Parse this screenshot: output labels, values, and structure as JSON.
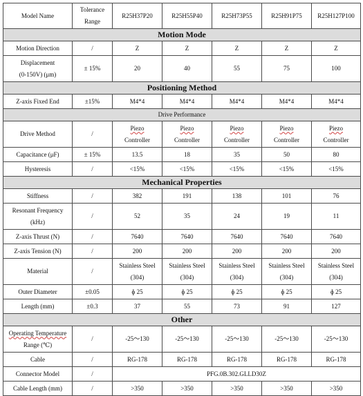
{
  "header": {
    "label_col": "Model Name",
    "tolerance": "Tolerance Range",
    "models": [
      "R25H37P20",
      "R25H55P40",
      "R25H73P55",
      "R25H91P75",
      "R25H127P100"
    ]
  },
  "sections": {
    "motion": "Motion Mode",
    "positioning": "Positioning Method",
    "drive": "Drive Performance",
    "mechanical": "Mechanical Properties",
    "other": "Other"
  },
  "rows": {
    "motion_direction": {
      "label": "Motion Direction",
      "tol": "/",
      "values": [
        "Z",
        "Z",
        "Z",
        "Z",
        "Z"
      ]
    },
    "displacement": {
      "label_a": "Displacement",
      "label_b": "(0-150V) (μm)",
      "tol": "± 15%",
      "values": [
        "20",
        "40",
        "55",
        "75",
        "100"
      ]
    },
    "zaxis_fixed": {
      "label": "Z-axis Fixed End",
      "tol": "±15%",
      "values": [
        "M4*4",
        "M4*4",
        "M4*4",
        "M4*4",
        "M4*4"
      ]
    },
    "drive_method": {
      "label": "Drive Method",
      "tol": "/",
      "line1": "Piezo",
      "line2": "Controller"
    },
    "capacitance": {
      "label": "Capacitance (μF)",
      "tol": "± 15%",
      "values": [
        "13.5",
        "18",
        "35",
        "50",
        "80"
      ]
    },
    "hysteresis": {
      "label": "Hysteresis",
      "tol": "/",
      "values": [
        "<15%",
        "<15%",
        "<15%",
        "<15%",
        "<15%"
      ]
    },
    "stiffness": {
      "label": "Stiffness",
      "tol": "/",
      "values": [
        "382",
        "191",
        "138",
        "101",
        "76"
      ]
    },
    "resonant": {
      "label_a": "Resonant Frequency",
      "label_b": "(kHz)",
      "tol": "/",
      "values": [
        "52",
        "35",
        "24",
        "19",
        "11"
      ]
    },
    "thrust": {
      "label": "Z-axis Thrust (N)",
      "tol": "/",
      "values": [
        "7640",
        "7640",
        "7640",
        "7640",
        "7640"
      ]
    },
    "tension": {
      "label": "Z-axis Tension (N)",
      "tol": "/",
      "values": [
        "200",
        "200",
        "200",
        "200",
        "200"
      ]
    },
    "material": {
      "label": "Material",
      "tol": "/",
      "line1": "Stainless Steel",
      "line2": "(304)"
    },
    "outer_diameter": {
      "label": "Outer Diameter",
      "tol": "±0.05",
      "values": [
        "ɸ 25",
        "ɸ 25",
        "ɸ 25",
        "ɸ 25",
        "ɸ 25"
      ]
    },
    "length": {
      "label": "Length (mm)",
      "tol": "±0.3",
      "values": [
        "37",
        "55",
        "73",
        "91",
        "127"
      ]
    },
    "temperature": {
      "label_a": "Operating Temperature",
      "label_b": "Range (℃)",
      "tol": "/",
      "values": [
        "-25～130",
        "-25～130",
        "-25～130",
        "-25～130",
        "-25～130"
      ]
    },
    "cable": {
      "label": "Cable",
      "tol": "/",
      "values": [
        "RG-178",
        "RG-178",
        "RG-178",
        "RG-178",
        "RG-178"
      ]
    },
    "connector": {
      "label": "Connector Model",
      "tol": "/",
      "value": "PFG.0B.302.GLLD30Z"
    },
    "cable_length": {
      "label": "Cable Length (mm)",
      "tol": "/",
      "values": [
        ">350",
        ">350",
        ">350",
        ">350",
        ">350"
      ]
    }
  }
}
